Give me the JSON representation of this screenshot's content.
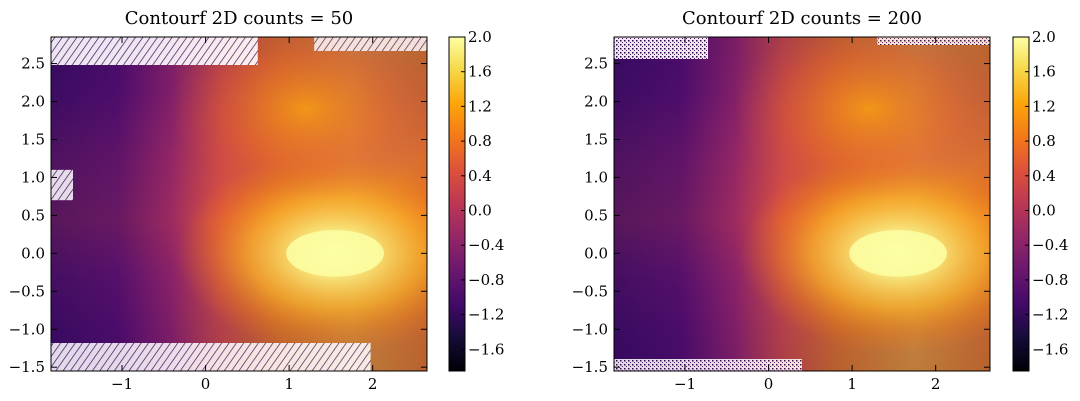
{
  "chart_data": [
    {
      "type": "heatmap",
      "title": "Contourf 2D counts = 50",
      "xlabel": "",
      "ylabel": "",
      "xlim": [
        -1.85,
        2.65
      ],
      "ylim": [
        -1.55,
        2.85
      ],
      "xticks": [
        -1,
        0,
        1,
        2
      ],
      "xtick_labels": [
        "−1",
        "0",
        "1",
        "2"
      ],
      "yticks": [
        -1.5,
        -1.0,
        -0.5,
        0.0,
        0.5,
        1.0,
        1.5,
        2.0,
        2.5
      ],
      "ytick_labels": [
        "−1.5",
        "−1.0",
        "−0.5",
        "0.0",
        "0.5",
        "1.0",
        "1.5",
        "2.0",
        "2.5"
      ],
      "colorbar": {
        "range": [
          -1.85,
          2.0
        ],
        "ticks": [
          2.0,
          1.6,
          1.2,
          0.8,
          0.4,
          0.0,
          -0.4,
          -0.8,
          -1.2,
          -1.6
        ],
        "tick_labels": [
          "2.0",
          "1.6",
          "1.2",
          "0.8",
          "0.4",
          "0.0",
          "−0.4",
          "−0.8",
          "−1.2",
          "−1.6"
        ]
      },
      "colormap": "inferno",
      "peak": {
        "x": 1.55,
        "y": 0.0,
        "value": 2.0
      },
      "grid": false
    },
    {
      "type": "heatmap",
      "title": "Contourf 2D counts = 200",
      "xlabel": "",
      "ylabel": "",
      "xlim": [
        -1.85,
        2.65
      ],
      "ylim": [
        -1.55,
        2.85
      ],
      "xticks": [
        -1,
        0,
        1,
        2
      ],
      "xtick_labels": [
        "−1",
        "0",
        "1",
        "2"
      ],
      "yticks": [
        -1.5,
        -1.0,
        -0.5,
        0.0,
        0.5,
        1.0,
        1.5,
        2.0,
        2.5
      ],
      "ytick_labels": [
        "−1.5",
        "−1.0",
        "−0.5",
        "0.0",
        "0.5",
        "1.0",
        "1.5",
        "2.0",
        "2.5"
      ],
      "colorbar": {
        "range": [
          -1.85,
          2.0
        ],
        "ticks": [
          2.0,
          1.6,
          1.2,
          0.8,
          0.4,
          0.0,
          -0.4,
          -0.8,
          -1.2,
          -1.6
        ],
        "tick_labels": [
          "2.0",
          "1.6",
          "1.2",
          "0.8",
          "0.4",
          "0.0",
          "−0.4",
          "−0.8",
          "−1.2",
          "−1.6"
        ]
      },
      "colormap": "inferno",
      "peak": {
        "x": 1.55,
        "y": 0.0,
        "value": 2.0
      },
      "grid": false
    }
  ]
}
